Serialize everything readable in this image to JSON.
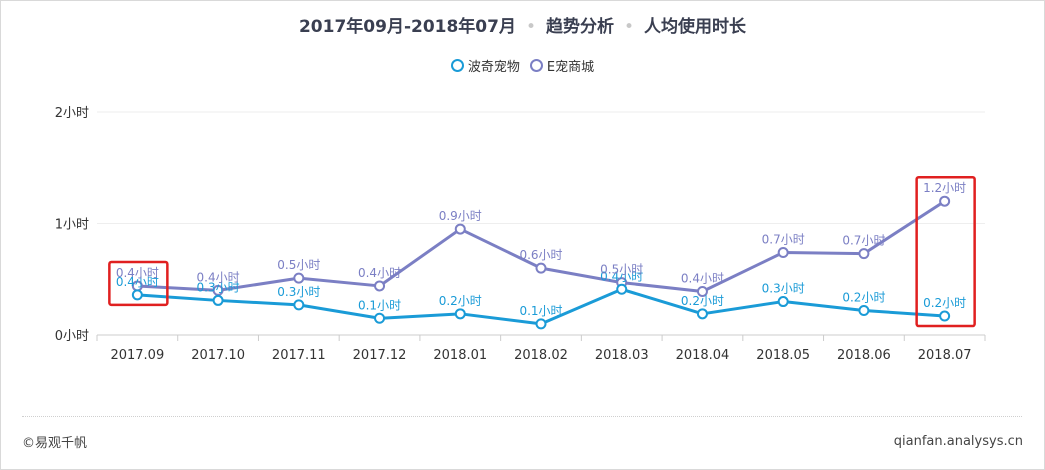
{
  "header": {
    "title_part1": "2017年09月-2018年07月",
    "title_part2": "趋势分析",
    "title_part3": "人均使用时长",
    "separator": "•"
  },
  "footer": {
    "brand": "©易观千帆",
    "site": "qianfan.analysys.cn"
  },
  "chart_data": {
    "type": "line",
    "categories": [
      "2017.09",
      "2017.10",
      "2017.11",
      "2017.12",
      "2018.01",
      "2018.02",
      "2018.03",
      "2018.04",
      "2018.05",
      "2018.06",
      "2018.07"
    ],
    "ylim": [
      0,
      2
    ],
    "yticks": [
      {
        "value": 0,
        "label": "0小时"
      },
      {
        "value": 1,
        "label": "1小时"
      },
      {
        "value": 2,
        "label": "2小时"
      }
    ],
    "grid": true,
    "legend_position": "top-center",
    "series": [
      {
        "name": "波奇宠物",
        "color": "#1a9bd7",
        "values": [
          0.36,
          0.31,
          0.27,
          0.15,
          0.19,
          0.1,
          0.41,
          0.19,
          0.3,
          0.22,
          0.17
        ],
        "labels": [
          "0.4小时",
          "0.3小时",
          "0.3小时",
          "0.1小时",
          "0.2小时",
          "0.1小时",
          "0.4小时",
          "0.2小时",
          "0.3小时",
          "0.2小时",
          "0.2小时"
        ]
      },
      {
        "name": "E宠商城",
        "color": "#7b7fc4",
        "values": [
          0.44,
          0.4,
          0.51,
          0.44,
          0.95,
          0.6,
          0.47,
          0.39,
          0.74,
          0.73,
          1.2
        ],
        "labels": [
          "0.4小时",
          "0.4小时",
          "0.5小时",
          "0.4小时",
          "0.9小时",
          "0.6小时",
          "0.5小时",
          "0.4小时",
          "0.7小时",
          "0.7小时",
          "1.2小时"
        ]
      }
    ],
    "highlight_color": "#e02020",
    "highlight_categories": [
      "2017.09",
      "2018.07"
    ]
  }
}
